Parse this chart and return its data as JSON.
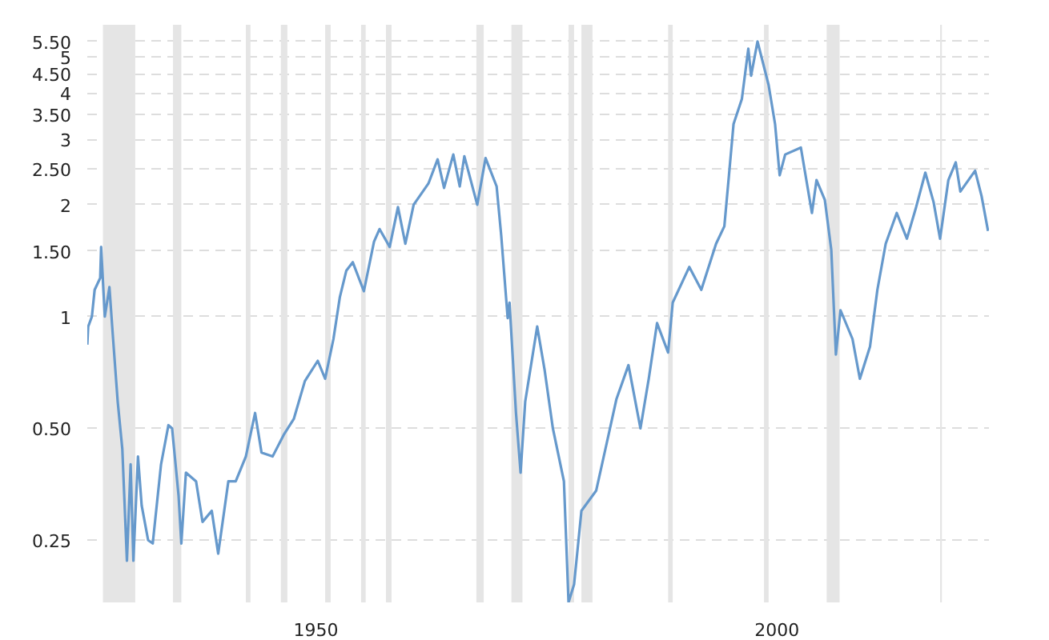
{
  "chart_data": {
    "type": "line",
    "log": "y",
    "grid": "y",
    "xlim": [
      1925.2,
      2023
    ],
    "xticks": [
      1950,
      2000
    ],
    "ylim": [
      0.17,
      6.1
    ],
    "yticks": [
      {
        "value": 0.25,
        "label": "0.25"
      },
      {
        "value": 0.5,
        "label": "0.50"
      },
      1,
      {
        "value": 1.5,
        "label": "1.50"
      },
      2,
      {
        "value": 2.5,
        "label": "2.50"
      },
      3,
      {
        "value": 3.5,
        "label": "3.50"
      },
      4,
      {
        "value": 4.5,
        "label": "4.50"
      },
      5,
      {
        "value": 5.5,
        "label": "5.50"
      }
    ],
    "bands": [
      {
        "axis": "x",
        "from": 1926.9,
        "to": 1930.4,
        "color": "#e5e5e5"
      },
      {
        "axis": "x",
        "from": 1934.5,
        "to": 1935.4,
        "color": "#e5e5e5"
      },
      {
        "axis": "x",
        "from": 1942.4,
        "to": 1942.9,
        "color": "#e5e5e5"
      },
      {
        "axis": "x",
        "from": 1946.2,
        "to": 1946.9,
        "color": "#e5e5e5"
      },
      {
        "axis": "x",
        "from": 1951.0,
        "to": 1951.6,
        "color": "#e5e5e5"
      },
      {
        "axis": "x",
        "from": 1954.9,
        "to": 1955.4,
        "color": "#e5e5e5"
      },
      {
        "axis": "x",
        "from": 1957.6,
        "to": 1958.2,
        "color": "#e5e5e5"
      },
      {
        "axis": "x",
        "from": 1967.4,
        "to": 1968.2,
        "color": "#e5e5e5"
      },
      {
        "axis": "x",
        "from": 1971.2,
        "to": 1972.4,
        "color": "#e5e5e5"
      },
      {
        "axis": "x",
        "from": 1977.4,
        "to": 1978.0,
        "color": "#e5e5e5"
      },
      {
        "axis": "x",
        "from": 1978.8,
        "to": 1980.0,
        "color": "#e5e5e5"
      },
      {
        "axis": "x",
        "from": 1988.2,
        "to": 1988.7,
        "color": "#e5e5e5"
      },
      {
        "axis": "x",
        "from": 1998.6,
        "to": 1999.1,
        "color": "#e5e5e5"
      },
      {
        "axis": "x",
        "from": 2005.4,
        "to": 2006.8,
        "color": "#e5e5e5"
      },
      {
        "axis": "x",
        "from": 2017.7,
        "to": 2017.9,
        "color": "#e5e5e5"
      }
    ],
    "series": [
      {
        "color": "#6699cc",
        "x": [
          1925.2,
          1925.3,
          1925.7,
          1926.0,
          1926.6,
          1926.7,
          1927.1,
          1927.6,
          1928.0,
          1928.5,
          1929.0,
          1929.5,
          1929.9,
          1930.2,
          1930.7,
          1931.1,
          1931.8,
          1932.3,
          1933.2,
          1934.0,
          1934.4,
          1935.1,
          1935.4,
          1935.9,
          1937.0,
          1937.7,
          1938.7,
          1939.4,
          1940.5,
          1941.3,
          1942.4,
          1943.4,
          1944.1,
          1945.3,
          1946.5,
          1947.6,
          1948.8,
          1950.2,
          1951.0,
          1951.9,
          1952.6,
          1953.3,
          1954.0,
          1955.2,
          1956.3,
          1956.9,
          1958.0,
          1958.9,
          1959.7,
          1960.6,
          1962.2,
          1963.2,
          1963.9,
          1964.9,
          1965.6,
          1966.1,
          1967.5,
          1968.4,
          1969.6,
          1970.1,
          1970.8,
          1971.0,
          1971.7,
          1972.2,
          1972.7,
          1974.0,
          1974.8,
          1975.7,
          1976.9,
          1977.4,
          1978.0,
          1978.8,
          1980.4,
          1981.4,
          1982.6,
          1983.9,
          1985.2,
          1986.1,
          1987.0,
          1988.2,
          1988.7,
          1990.5,
          1991.8,
          1993.4,
          1994.3,
          1994.8,
          1995.3,
          1996.2,
          1996.9,
          1997.2,
          1997.9,
          1999.1,
          1999.8,
          2000.3,
          2000.9,
          2002.6,
          2003.8,
          2004.3,
          2005.2,
          2005.9,
          2006.4,
          2006.9,
          2008.2,
          2009.0,
          2010.1,
          2010.9,
          2011.8,
          2013.0,
          2014.1,
          2015.1,
          2016.1,
          2017.0,
          2017.7,
          2018.6,
          2019.4,
          2019.9,
          2021.5,
          2022.2,
          2022.9
        ],
        "values": [
          0.84,
          0.94,
          1.0,
          1.18,
          1.27,
          1.54,
          1.0,
          1.2,
          0.87,
          0.59,
          0.44,
          0.22,
          0.4,
          0.22,
          0.42,
          0.31,
          0.25,
          0.245,
          0.4,
          0.51,
          0.5,
          0.33,
          0.245,
          0.38,
          0.36,
          0.28,
          0.3,
          0.23,
          0.36,
          0.36,
          0.42,
          0.55,
          0.43,
          0.42,
          0.48,
          0.53,
          0.67,
          0.76,
          0.68,
          0.87,
          1.13,
          1.33,
          1.4,
          1.17,
          1.59,
          1.72,
          1.54,
          1.97,
          1.57,
          2.0,
          2.28,
          2.65,
          2.22,
          2.73,
          2.24,
          2.7,
          2.0,
          2.67,
          2.24,
          1.65,
          0.99,
          1.09,
          0.55,
          0.38,
          0.59,
          0.94,
          0.72,
          0.5,
          0.36,
          0.17,
          0.19,
          0.3,
          0.34,
          0.44,
          0.6,
          0.74,
          0.5,
          0.68,
          0.96,
          0.8,
          1.09,
          1.36,
          1.18,
          1.57,
          1.75,
          2.4,
          3.3,
          3.85,
          5.26,
          4.45,
          5.5,
          4.2,
          3.3,
          2.4,
          2.73,
          2.85,
          1.9,
          2.33,
          2.06,
          1.51,
          0.79,
          1.04,
          0.87,
          0.68,
          0.83,
          1.18,
          1.57,
          1.9,
          1.62,
          1.97,
          2.44,
          2.03,
          1.62,
          2.33,
          2.6,
          2.17,
          2.47,
          2.11,
          1.7
        ]
      }
    ]
  }
}
